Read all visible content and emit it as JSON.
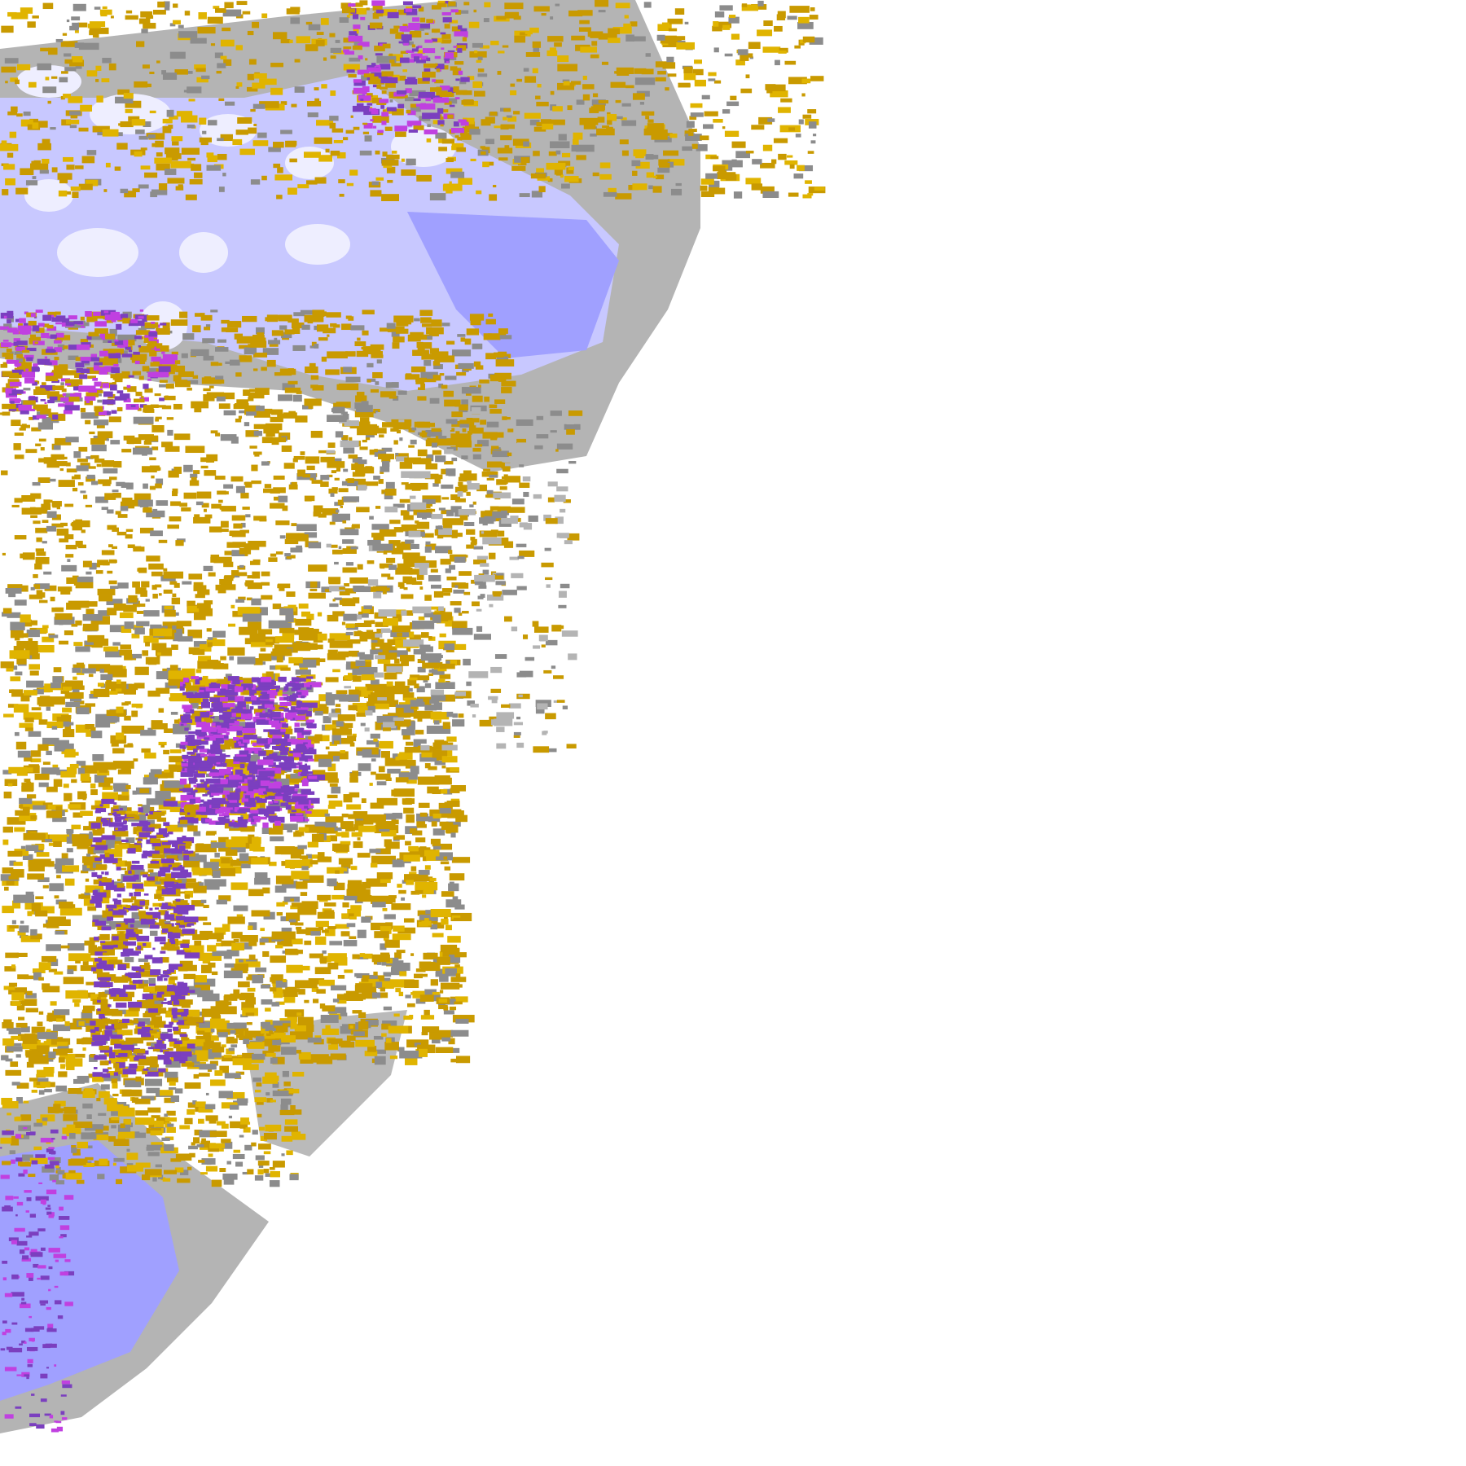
{
  "map": {
    "type": "weather-radar-satellite-overlay-tile",
    "background": "#ffffff",
    "palette": {
      "gold": "#c99a00",
      "bright_gold": "#e0b400",
      "dark_gray": "#8c8c8c",
      "light_gray": "#b4b4b4",
      "lavender": "#c8c8ff",
      "periwinkle": "#a0a0ff",
      "pale": "#eeeeff",
      "purple": "#7b3fbf",
      "magenta": "#c040e0"
    }
  }
}
